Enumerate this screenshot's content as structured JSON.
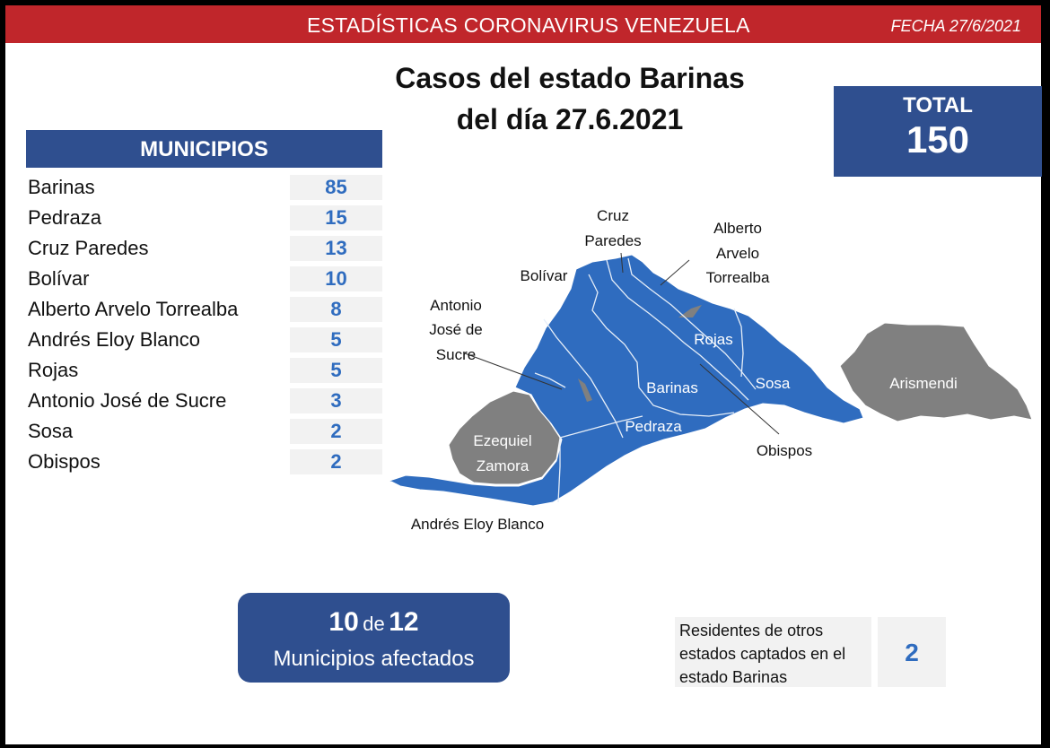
{
  "header": {
    "title": "ESTADÍSTICAS CORONAVIRUS VENEZUELA",
    "date": "FECHA 27/6/2021"
  },
  "title": {
    "line1": "Casos del estado Barinas",
    "line2": "del día 27.6.2021"
  },
  "total": {
    "label": "TOTAL",
    "value": "150"
  },
  "municipios": {
    "header": "MUNICIPIOS",
    "rows": [
      {
        "name": "Barinas",
        "value": "85"
      },
      {
        "name": "Pedraza",
        "value": "15"
      },
      {
        "name": "Cruz Paredes",
        "value": "13"
      },
      {
        "name": "Bolívar",
        "value": "10"
      },
      {
        "name": "Alberto Arvelo Torrealba",
        "value": "8"
      },
      {
        "name": "Andrés Eloy Blanco",
        "value": "5"
      },
      {
        "name": "Rojas",
        "value": "5"
      },
      {
        "name": "Antonio José de Sucre",
        "value": "3"
      },
      {
        "name": "Sosa",
        "value": "2"
      },
      {
        "name": "Obispos",
        "value": "2"
      }
    ]
  },
  "map": {
    "labels": {
      "cruz_paredes_1": "Cruz",
      "cruz_paredes_2": "Paredes",
      "alberto_1": "Alberto",
      "alberto_2": "Arvelo",
      "alberto_3": "Torrealba",
      "bolivar": "Bolívar",
      "sucre_1": "Antonio",
      "sucre_2": "José de",
      "sucre_3": "Sucre",
      "rojas": "Rojas",
      "barinas": "Barinas",
      "sosa": "Sosa",
      "arismendi": "Arismendi",
      "pedraza": "Pedraza",
      "obispos": "Obispos",
      "ezequiel_1": "Ezequiel",
      "ezequiel_2": "Zamora",
      "andres_eloy": "Andrés Eloy Blanco"
    },
    "colors": {
      "affected": "#2f6cbf",
      "unaffected": "#808080"
    }
  },
  "affected": {
    "count": "10",
    "connector": "de",
    "total": "12",
    "label": "Municipios afectados"
  },
  "residents": {
    "text_line1": "Residentes de otros",
    "text_line2": "estados captados en el",
    "text_line3": "estado Barinas",
    "value": "2"
  }
}
